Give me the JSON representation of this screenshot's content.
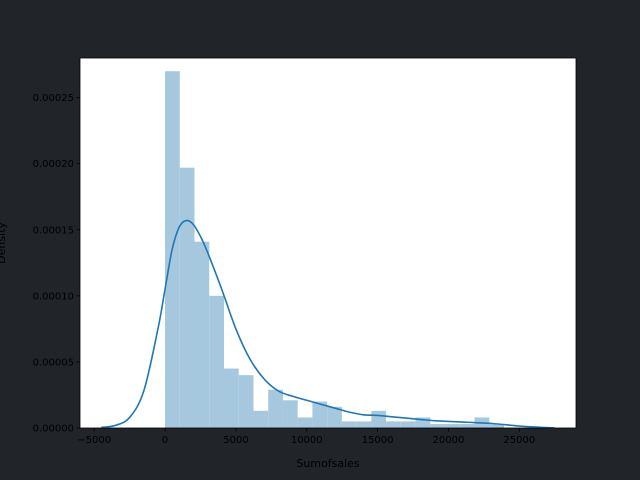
{
  "chart_data": {
    "type": "bar",
    "subtype": "histogram-with-kde",
    "title": "",
    "xlabel": "Sumofsales",
    "ylabel": "Density",
    "xlim": [
      -6000,
      29000
    ],
    "ylim": [
      0,
      0.00028
    ],
    "xticks": [
      -5000,
      0,
      5000,
      10000,
      15000,
      20000,
      25000
    ],
    "xtick_labels": [
      "−5000",
      "0",
      "5000",
      "10000",
      "15000",
      "20000",
      "25000"
    ],
    "yticks": [
      0,
      5e-05,
      0.0001,
      0.00015,
      0.0002,
      0.00025
    ],
    "ytick_labels": [
      "0.00000",
      "0.00005",
      "0.00010",
      "0.00015",
      "0.00020",
      "0.00025"
    ],
    "grid": false,
    "colors": {
      "figure_background": "#212429",
      "plot_background": "#ffffff",
      "bars": "#a6c8df",
      "kde_line": "#1f77b4",
      "axes": "#000000"
    },
    "histogram": {
      "bin_edges": [
        0,
        1040,
        2080,
        3120,
        4160,
        5200,
        6240,
        7280,
        8320,
        9360,
        10400,
        11440,
        12480,
        13520,
        14560,
        15600,
        16640,
        17680,
        18720,
        19760,
        20800,
        21840,
        22880,
        23920
      ],
      "densities": [
        0.00027,
        0.000197,
        0.000141,
        0.0001,
        4.5e-05,
        4e-05,
        1.3e-05,
        2.9e-05,
        2.1e-05,
        8e-06,
        2e-05,
        1.6e-05,
        5e-06,
        5e-06,
        1.3e-05,
        5e-06,
        5e-06,
        8e-06,
        3e-06,
        3e-06,
        3e-06,
        8e-06,
        3e-06
      ]
    },
    "kde": {
      "x": [
        -4500,
        -3500,
        -2500,
        -1500,
        -500,
        0,
        500,
        1000,
        1500,
        2000,
        2500,
        3000,
        4000,
        5000,
        6000,
        7000,
        8000,
        9000,
        10000,
        11000,
        12000,
        13000,
        14000,
        15000,
        16000,
        17000,
        18000,
        19000,
        20000,
        21000,
        22000,
        23000,
        24000,
        25000,
        26000,
        27500
      ],
      "y": [
        5e-07,
        2e-06,
        8e-06,
        2.8e-05,
        7.5e-05,
        0.000105,
        0.000135,
        0.000152,
        0.000157,
        0.000154,
        0.000145,
        0.000133,
        0.000105,
        7.5e-05,
        5.2e-05,
        3.7e-05,
        2.8e-05,
        2.4e-05,
        2.1e-05,
        1.8e-05,
        1.5e-05,
        1.2e-05,
        1e-05,
        9.5e-06,
        8.5e-06,
        7.5e-06,
        6.5e-06,
        5.5e-06,
        5e-06,
        4.5e-06,
        4e-06,
        3.5e-06,
        2.5e-06,
        1.5e-06,
        8e-07,
        1e-07
      ]
    }
  }
}
